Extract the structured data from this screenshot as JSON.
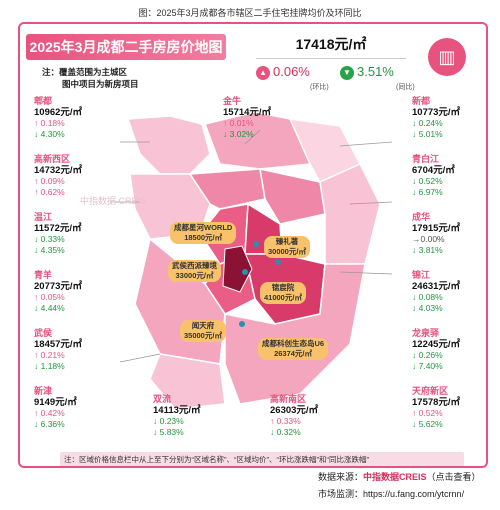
{
  "caption": "图：2025年3月成都各市辖区二手住宅挂牌均价及环同比",
  "title": "2025年3月成都二手房房价地图",
  "notes": [
    "注：覆盖范围为主城区",
    "图中项目为新房项目"
  ],
  "avg_price": "17418元/㎡",
  "mom": {
    "value": "0.06%",
    "label": "(环比)"
  },
  "yoy": {
    "value": "3.51%",
    "label": "(同比)"
  },
  "watermark": "中指数据 CREIS",
  "districts": [
    {
      "name": "郫都",
      "price": "10962元/㎡",
      "mom": "↑ 0.18%",
      "yoy": "↓ 4.30%",
      "mom_dir": "up",
      "yoy_dir": "down"
    },
    {
      "name": "高新西区",
      "price": "14732元/㎡",
      "mom": "↑ 0.09%",
      "yoy": "↑ 0.62%",
      "mom_dir": "up",
      "yoy_dir": "up"
    },
    {
      "name": "温江",
      "price": "11572元/㎡",
      "mom": "↓ 0.33%",
      "yoy": "↓ 4.35%",
      "mom_dir": "down",
      "yoy_dir": "down"
    },
    {
      "name": "青羊",
      "price": "20773元/㎡",
      "mom": "↑ 0.05%",
      "yoy": "↓ 4.44%",
      "mom_dir": "up",
      "yoy_dir": "down"
    },
    {
      "name": "武侯",
      "price": "18457元/㎡",
      "mom": "↑ 0.21%",
      "yoy": "↓ 1.18%",
      "mom_dir": "up",
      "yoy_dir": "down"
    },
    {
      "name": "新津",
      "price": "9149元/㎡",
      "mom": "↑ 0.42%",
      "yoy": "↓ 6.36%",
      "mom_dir": "up",
      "yoy_dir": "down"
    },
    {
      "name": "金牛",
      "price": "15714元/㎡",
      "mom": "↑ 0.01%",
      "yoy": "↓ 3.02%",
      "mom_dir": "up",
      "yoy_dir": "down"
    },
    {
      "name": "双流",
      "price": "14113元/㎡",
      "mom": "↓ 0.23%",
      "yoy": "↓ 5.83%",
      "mom_dir": "down",
      "yoy_dir": "down"
    },
    {
      "name": "高新南区",
      "price": "26303元/㎡",
      "mom": "↑ 0.33%",
      "yoy": "↓ 0.32%",
      "mom_dir": "up",
      "yoy_dir": "down"
    },
    {
      "name": "新都",
      "price": "10773元/㎡",
      "mom": "↓ 0.24%",
      "yoy": "↓ 5.01%",
      "mom_dir": "down",
      "yoy_dir": "down"
    },
    {
      "name": "青白江",
      "price": "6704元/㎡",
      "mom": "↓ 0.52%",
      "yoy": "↓ 6.97%",
      "mom_dir": "down",
      "yoy_dir": "down"
    },
    {
      "name": "成华",
      "price": "17915元/㎡",
      "mom": "→0.00%",
      "yoy": "↓ 3.81%",
      "mom_dir": "flat",
      "yoy_dir": "down"
    },
    {
      "name": "锦江",
      "price": "24631元/㎡",
      "mom": "↓ 0.08%",
      "yoy": "↓ 4.03%",
      "mom_dir": "down",
      "yoy_dir": "down"
    },
    {
      "name": "龙泉驿",
      "price": "12245元/㎡",
      "mom": "↓ 0.26%",
      "yoy": "↓ 7.40%",
      "mom_dir": "down",
      "yoy_dir": "down"
    },
    {
      "name": "天府新区",
      "price": "17578元/㎡",
      "mom": "↑ 0.52%",
      "yoy": "↓ 5.62%",
      "mom_dir": "up",
      "yoy_dir": "down"
    }
  ],
  "projects": [
    {
      "name": "成都星河WORLD",
      "price": "18500元/㎡"
    },
    {
      "name": "臻礼著",
      "price": "30000元/㎡"
    },
    {
      "name": "武侯西派臻境",
      "price": "33000元/㎡"
    },
    {
      "name": "锦宸院",
      "price": "41000元/㎡"
    },
    {
      "name": "闻天府",
      "price": "35000元/㎡"
    },
    {
      "name": "成都科创生态岛U6",
      "price": "26374元/㎡"
    }
  ],
  "bottom_note": "注：区域价格信息栏中从上至下分别为“区域名称”、“区域均价”、“环比涨跌幅”和“同比涨跌幅”",
  "source_label": "数据来源：",
  "source_name": "中指数据CREIS",
  "source_hint": "（点击查看）",
  "link_label": "市场监测：",
  "link_url": "https://u.fang.com/ytcrnn/",
  "colors": {
    "accent": "#e8527f",
    "up": "#e8527f",
    "down": "#22953f",
    "project": "#f7c26b"
  }
}
